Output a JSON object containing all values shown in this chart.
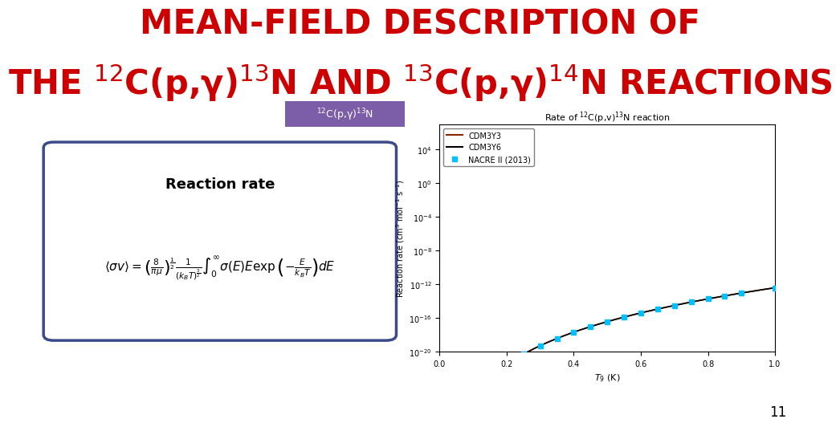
{
  "title_line1": "MEAN-FIELD DESCRIPTION OF",
  "title_line2": "THE $^{12}$C(p,γ)$^{13}$N AND $^{13}$C(p,γ)$^{14}$N REACTIONS",
  "title_color": "#cc0000",
  "title_fontsize": 30,
  "tab_label": "$^{12}$C(p,γ)$^{13}$N",
  "tab_bg": "#7b5ea7",
  "tab_text_color": "#ffffff",
  "reaction_rate_label": "Reaction rate",
  "formula": "$\\langle\\sigma v\\rangle = \\left(\\frac{8}{\\pi\\mu}\\right)^{\\frac{1}{2}} \\frac{1}{(k_B T)^{\\frac{3}{2}}} \\int_0^{\\infty} \\sigma(E) E \\exp\\left(-\\frac{E}{k_B T}\\right) dE$",
  "box_edge_color": "#3a4a8a",
  "box_bg": "#ffffff",
  "plot_title": "Rate of $^{12}$C(p,v)$^{13}$N reaction",
  "xlabel": "$T_9$ (K)",
  "ylabel": "Reaction rate (cm$^3$ mol$^{-1}$ s$^{-1}$)",
  "legend_entries": [
    "CDM3Y3",
    "CDM3Y6",
    "NACRE II (2013)"
  ],
  "line_color_cdm3y3": "#8b2500",
  "line_color_cdm3y6": "#000000",
  "scatter_color": "#00bfff",
  "page_number": "11",
  "bg_color": "#ffffff"
}
